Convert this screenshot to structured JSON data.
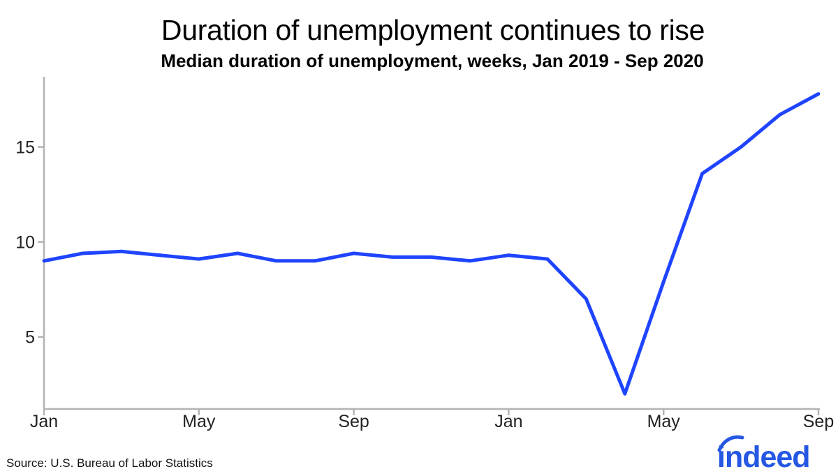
{
  "chart_data": {
    "type": "line",
    "title": "Duration of unemployment continues to rise",
    "subtitle": "Median duration of unemployment, weeks, Jan 2019 - Sep 2020",
    "xlabel": "",
    "ylabel": "",
    "x": [
      "2019-01",
      "2019-02",
      "2019-03",
      "2019-04",
      "2019-05",
      "2019-06",
      "2019-07",
      "2019-08",
      "2019-09",
      "2019-10",
      "2019-11",
      "2019-12",
      "2020-01",
      "2020-02",
      "2020-03",
      "2020-04",
      "2020-05",
      "2020-06",
      "2020-07",
      "2020-08",
      "2020-09"
    ],
    "series": [
      {
        "name": "Median duration of unemployment (weeks)",
        "values": [
          9.0,
          9.4,
          9.5,
          9.3,
          9.1,
          9.4,
          9.0,
          9.0,
          9.4,
          9.2,
          9.2,
          9.0,
          9.3,
          9.1,
          7.0,
          2.0,
          7.9,
          13.6,
          15.0,
          16.7,
          17.8
        ],
        "color": "#1f44ff"
      }
    ],
    "x_ticks": [
      {
        "index": 0,
        "label": "Jan"
      },
      {
        "index": 4,
        "label": "May"
      },
      {
        "index": 8,
        "label": "Sep"
      },
      {
        "index": 12,
        "label": "Jan"
      },
      {
        "index": 16,
        "label": "May"
      },
      {
        "index": 20,
        "label": "Sep"
      }
    ],
    "y_ticks": [
      5,
      10,
      15
    ],
    "ylim": [
      1.2,
      18.7
    ],
    "grid": false,
    "legend": "none"
  },
  "footer": {
    "source": "Source: U.S. Bureau of Labor Statistics",
    "logo_text": "indeed"
  },
  "colors": {
    "line": "#1f44ff",
    "axis": "#b3b3b3",
    "logo": "#2557e3"
  }
}
